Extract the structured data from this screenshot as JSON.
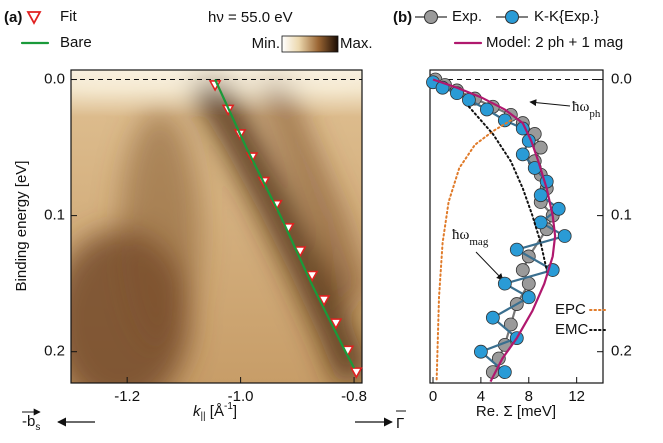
{
  "chart_data": [
    {
      "type": "heatmap-scatter",
      "panel_label": "(a)",
      "annotation": "hν = 55.0 eV",
      "colorbar_min": "Min.",
      "colorbar_max": "Max.",
      "xlabel_parts": [
        "k",
        "||",
        " [Å",
        "-1",
        "]"
      ],
      "ylabel": "Binding energy [eV]",
      "left_arrow_parts": [
        "-b",
        "s"
      ],
      "right_arrow_label": "Γ",
      "xlim": [
        -1.299,
        -0.786
      ],
      "ylim": [
        -0.007,
        0.223
      ],
      "xticks": [
        -1.2,
        {
          "value": -1,
          "label": "-1.0"
        },
        -0.8
      ],
      "yticks": [
        {
          "value": 0,
          "label": "0.0"
        },
        0.1,
        0.2
      ],
      "hlines": [
        0
      ],
      "series": [
        {
          "name": "Fit",
          "color": "#e02020",
          "marker": "triangle-down",
          "x": [
            -1.045,
            -1.022,
            -1.001,
            -0.98,
            -0.959,
            -0.937,
            -0.916,
            -0.895,
            -0.874,
            -0.853,
            -0.832,
            -0.811,
            -0.796
          ],
          "y": [
            0.004,
            0.022,
            0.04,
            0.057,
            0.075,
            0.092,
            0.109,
            0.126,
            0.144,
            0.162,
            0.179,
            0.199,
            0.215
          ]
        },
        {
          "name": "Bare",
          "color": "#1a9a3a",
          "marker": "line",
          "x": [
            -1.045,
            -0.99,
            -0.93,
            -0.875,
            -0.815,
            -0.8
          ],
          "y": [
            0.0,
            0.05,
            0.1,
            0.15,
            0.2,
            0.212
          ]
        }
      ]
    },
    {
      "type": "scatter-line",
      "panel_label": "(b)",
      "xlabel": "Re. Σ [meV]",
      "annotations": [
        [
          "ħω",
          "ph"
        ],
        [
          "ħω",
          "mag"
        ]
      ],
      "xlim": [
        -0.25,
        14.2
      ],
      "ylim": [
        -0.007,
        0.223
      ],
      "xticks": [
        0,
        4,
        8,
        12
      ],
      "yticks": [
        {
          "value": 0,
          "label": "0.0"
        },
        0.1,
        0.2
      ],
      "hlines": [
        0
      ],
      "series": [
        {
          "name": "Exp.",
          "color": "#9a9a9a",
          "marker": "circle",
          "x": [
            0.2,
            1,
            2,
            3.5,
            5,
            6.5,
            7.5,
            8.5,
            9,
            8.5,
            9,
            9.5,
            9,
            10,
            9.5,
            8,
            7.5,
            8,
            7,
            6.5,
            6,
            5.5,
            5
          ],
          "y": [
            0.0,
            0.004,
            0.008,
            0.014,
            0.02,
            0.026,
            0.032,
            0.04,
            0.05,
            0.06,
            0.07,
            0.08,
            0.09,
            0.1,
            0.11,
            0.13,
            0.14,
            0.15,
            0.165,
            0.18,
            0.195,
            0.205,
            0.215
          ]
        },
        {
          "name": "K-K{Exp.}",
          "color": "#2a9bd6",
          "marker": "circle",
          "x": [
            0,
            0.8,
            2,
            3,
            4.5,
            6,
            7.5,
            8,
            7.5,
            8.5,
            9.5,
            9,
            10.5,
            9,
            11,
            7,
            10,
            6,
            8,
            5,
            7,
            4,
            6
          ],
          "y": [
            0.002,
            0.006,
            0.01,
            0.015,
            0.022,
            0.03,
            0.036,
            0.045,
            0.055,
            0.065,
            0.075,
            0.085,
            0.095,
            0.105,
            0.115,
            0.125,
            0.14,
            0.15,
            0.16,
            0.175,
            0.19,
            0.2,
            0.215
          ]
        },
        {
          "name": "Model: 2 ph + 1 mag",
          "color": "#b0186e",
          "marker": "line",
          "x": [
            0,
            2,
            4,
            6,
            7.5,
            8.2,
            8.8,
            9.5,
            10,
            10.2,
            10,
            9.3,
            8.3,
            7,
            5.8,
            4.8
          ],
          "y": [
            0,
            0.006,
            0.013,
            0.022,
            0.032,
            0.045,
            0.06,
            0.08,
            0.1,
            0.115,
            0.13,
            0.15,
            0.17,
            0.19,
            0.205,
            0.222
          ]
        },
        {
          "name": "EPC",
          "color": "#e07b2a",
          "marker": "dotted",
          "x": [
            6.5,
            5,
            3.5,
            2.2,
            1.3,
            0.8,
            0.5,
            0.3
          ],
          "y": [
            0.03,
            0.038,
            0.048,
            0.065,
            0.09,
            0.12,
            0.16,
            0.222
          ]
        },
        {
          "name": "EMC",
          "color": "#111111",
          "marker": "dotted",
          "x": [
            3,
            5,
            6.5,
            7.5,
            8.3,
            9,
            9.5
          ],
          "y": [
            0.02,
            0.04,
            0.06,
            0.08,
            0.1,
            0.12,
            0.14
          ]
        }
      ]
    }
  ]
}
